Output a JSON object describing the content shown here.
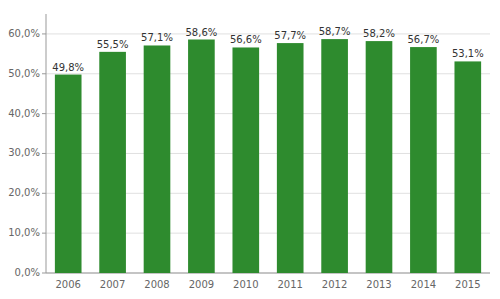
{
  "chart_data": {
    "type": "bar",
    "categories": [
      "2006",
      "2007",
      "2008",
      "2009",
      "2010",
      "2011",
      "2012",
      "2013",
      "2014",
      "2015"
    ],
    "values": [
      49.8,
      55.5,
      57.1,
      58.6,
      56.6,
      57.7,
      58.7,
      58.2,
      56.7,
      53.1
    ],
    "value_labels": [
      "49,8%",
      "55,5%",
      "57,1%",
      "58,6%",
      "56,6%",
      "57,7%",
      "58,7%",
      "58,2%",
      "56,7%",
      "53,1%"
    ],
    "data_labels": true,
    "color": "#2e8b2e",
    "ylim": [
      0,
      65
    ],
    "yticks": [
      {
        "value": 0,
        "label": "0,0%"
      },
      {
        "value": 10,
        "label": "10,0%"
      },
      {
        "value": 20,
        "label": "20,0%"
      },
      {
        "value": 30,
        "label": "30,0%"
      },
      {
        "value": 40,
        "label": "40,0%"
      },
      {
        "value": 50,
        "label": "50,0%"
      },
      {
        "value": 60,
        "label": "60,0%"
      }
    ],
    "grid": true
  }
}
